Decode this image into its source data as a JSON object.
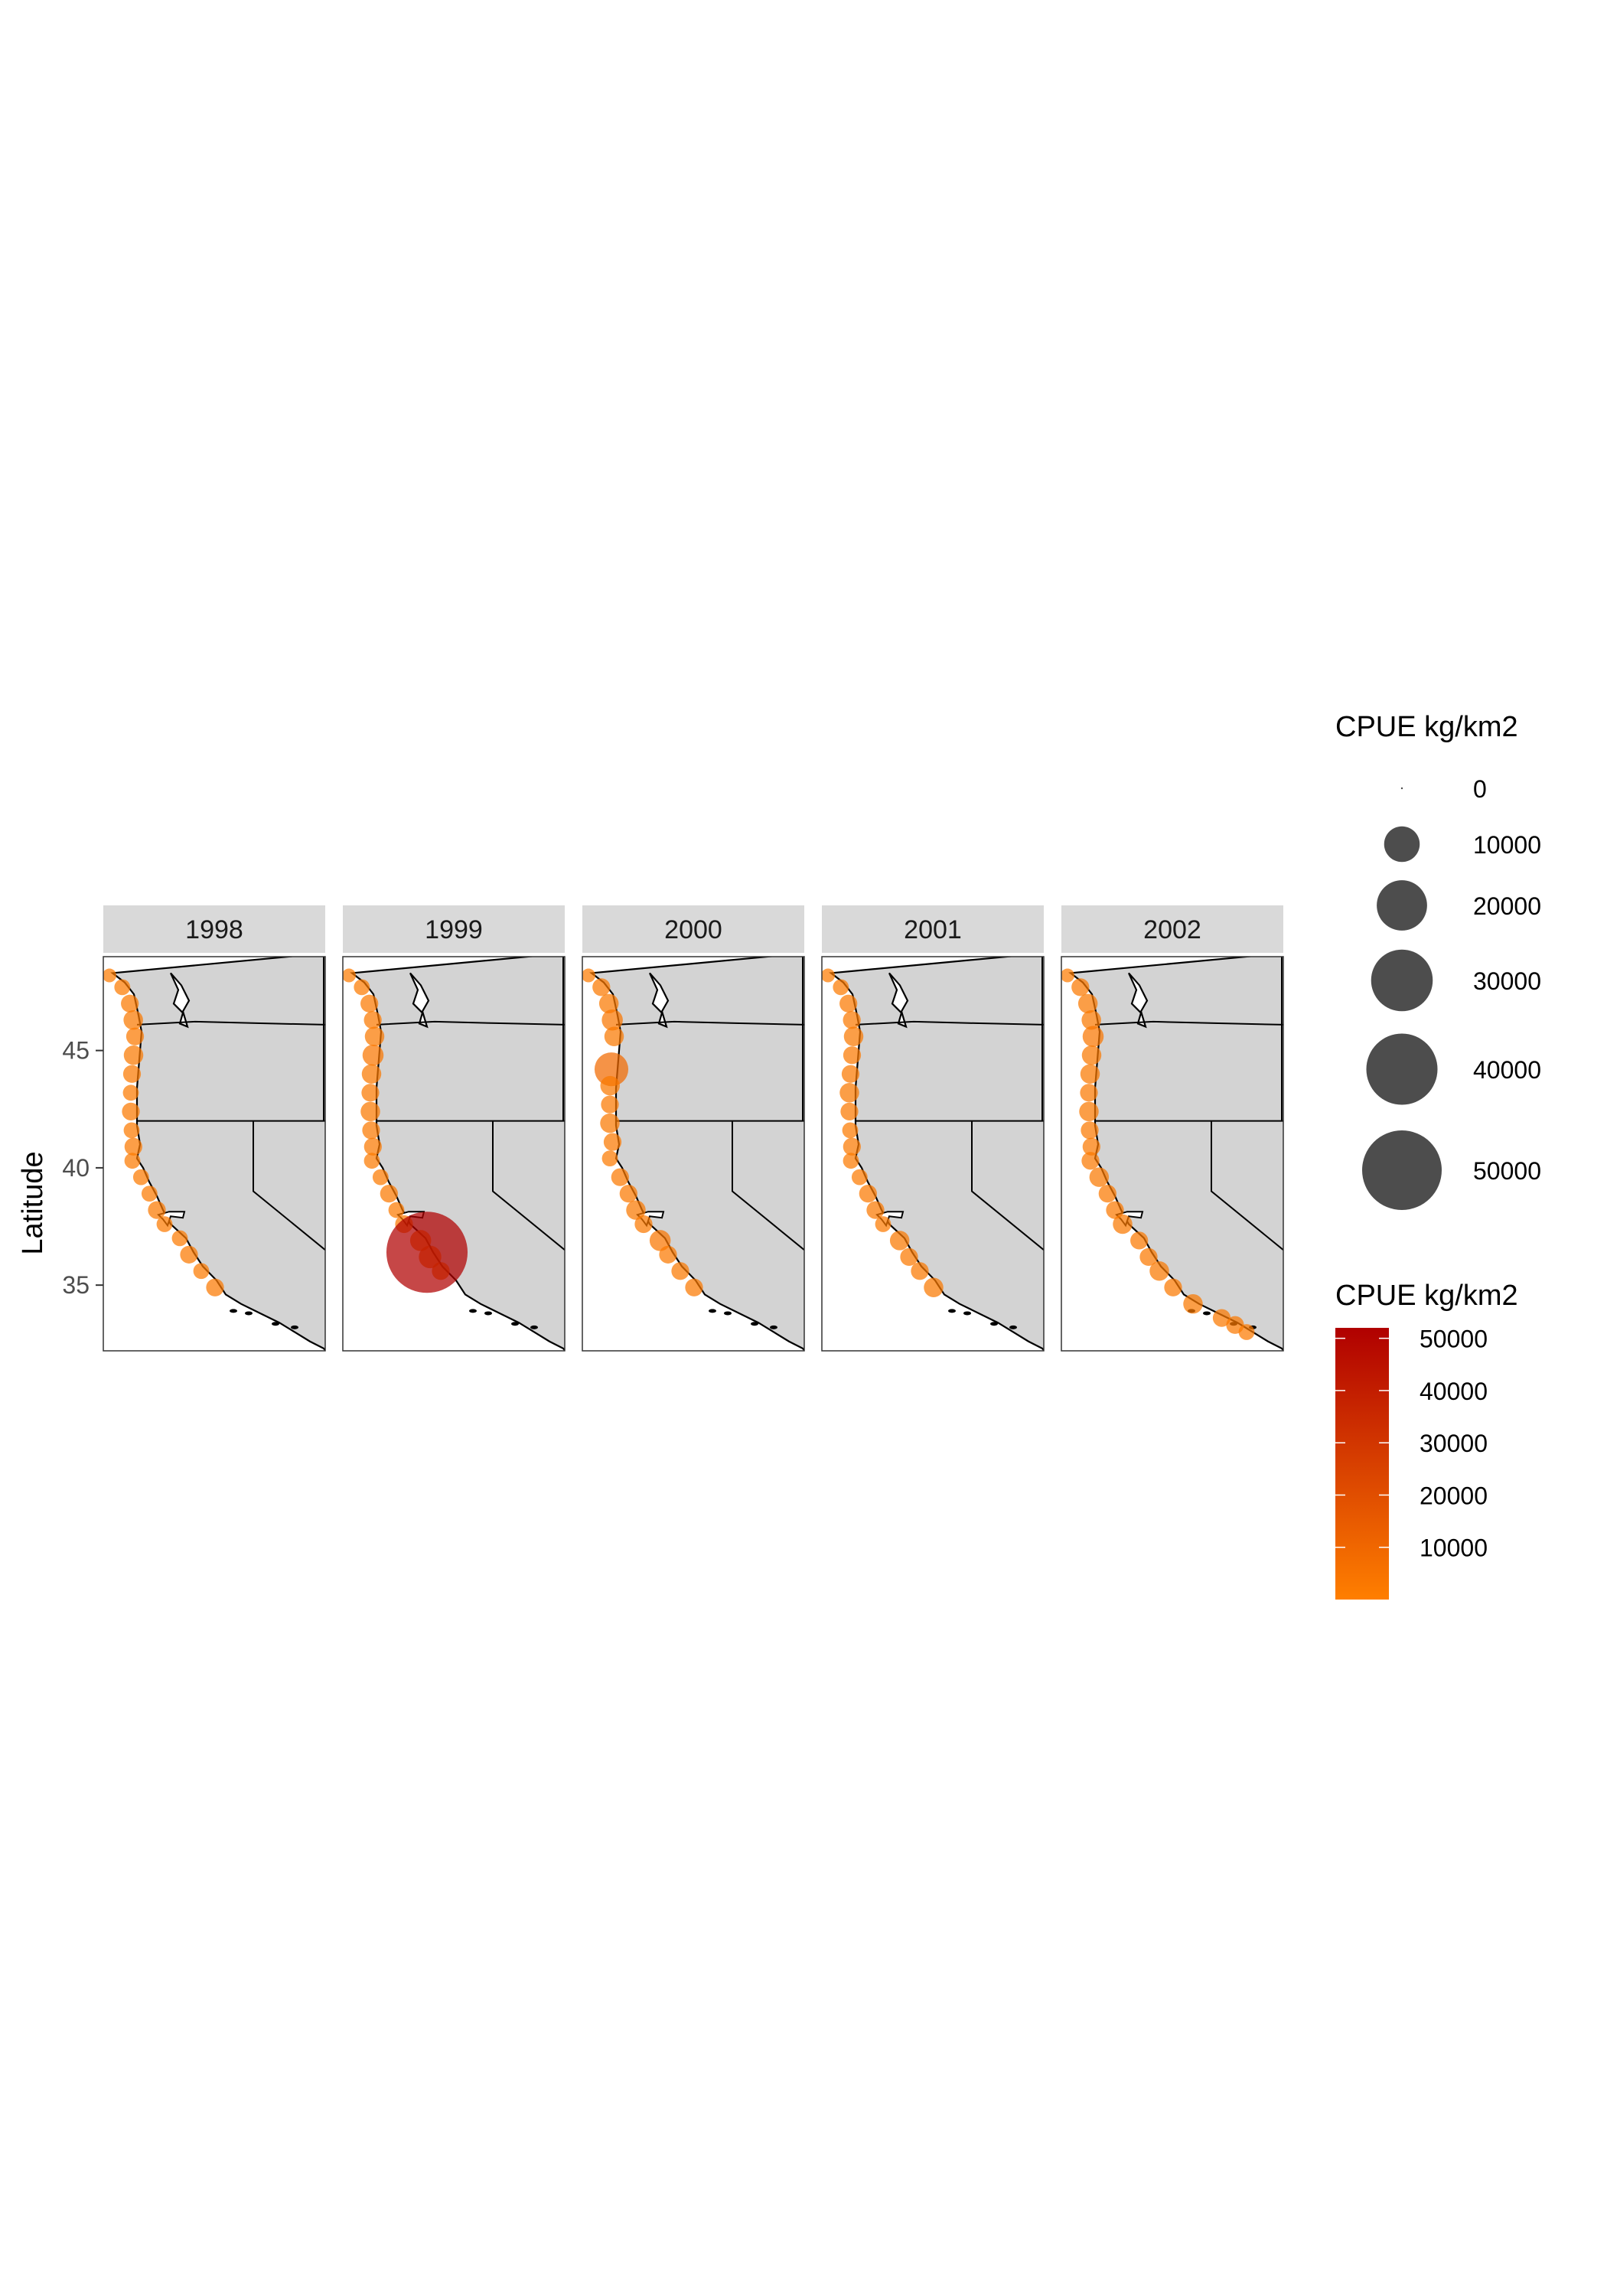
{
  "chart_data": {
    "type": "scatter",
    "subtype": "faceted bubble map",
    "title": "",
    "xlabel": "",
    "ylabel": "Latitude",
    "ylim": [
      32.2,
      49.0
    ],
    "yticks": [
      35,
      40,
      45
    ],
    "grid": false,
    "panels": [
      "1998",
      "1999",
      "2000",
      "2001",
      "2002"
    ],
    "size_legend": {
      "title": "CPUE kg/km2",
      "breaks": [
        "0",
        "10000",
        "20000",
        "30000",
        "40000",
        "50000"
      ],
      "values": [
        0,
        10000,
        20000,
        30000,
        40000,
        50000
      ]
    },
    "color_legend": {
      "title": "CPUE kg/km2",
      "labels": [
        "50000",
        "40000",
        "30000",
        "20000",
        "10000"
      ],
      "values": [
        50000,
        40000,
        30000,
        20000,
        10000
      ],
      "low_color": "#ff7f00",
      "high_color": "#b00000",
      "domain": [
        0,
        52000
      ]
    },
    "series": [
      {
        "panel": "1998",
        "points": [
          [
            48.2,
            1500
          ],
          [
            47.7,
            2000
          ],
          [
            47.0,
            2500
          ],
          [
            46.3,
            3000
          ],
          [
            45.6,
            2500
          ],
          [
            44.8,
            3000
          ],
          [
            44.0,
            2500
          ],
          [
            43.2,
            2000
          ],
          [
            42.4,
            2500
          ],
          [
            41.6,
            2000
          ],
          [
            40.9,
            2500
          ],
          [
            40.3,
            2000
          ],
          [
            39.6,
            2000
          ],
          [
            38.9,
            2000
          ],
          [
            38.2,
            2500
          ],
          [
            37.6,
            2000
          ],
          [
            37.0,
            2000
          ],
          [
            36.3,
            2500
          ],
          [
            35.6,
            2000
          ],
          [
            34.9,
            2500
          ]
        ]
      },
      {
        "panel": "1999",
        "points": [
          [
            48.2,
            1500
          ],
          [
            47.7,
            2000
          ],
          [
            47.0,
            2500
          ],
          [
            46.3,
            2500
          ],
          [
            45.6,
            3000
          ],
          [
            44.8,
            3500
          ],
          [
            44.0,
            3000
          ],
          [
            43.2,
            2500
          ],
          [
            42.4,
            3000
          ],
          [
            41.6,
            2500
          ],
          [
            40.9,
            2500
          ],
          [
            40.3,
            2000
          ],
          [
            39.6,
            2000
          ],
          [
            38.9,
            2500
          ],
          [
            38.2,
            2000
          ],
          [
            37.6,
            2500
          ],
          [
            36.9,
            3500
          ],
          [
            36.2,
            4000
          ],
          [
            35.6,
            2500
          ],
          [
            36.4,
            52000
          ]
        ]
      },
      {
        "panel": "2000",
        "points": [
          [
            48.2,
            1500
          ],
          [
            47.7,
            2500
          ],
          [
            47.0,
            3000
          ],
          [
            46.3,
            3500
          ],
          [
            45.6,
            3000
          ],
          [
            44.2,
            9000
          ],
          [
            43.5,
            3000
          ],
          [
            42.7,
            2500
          ],
          [
            41.9,
            3000
          ],
          [
            41.1,
            2500
          ],
          [
            40.4,
            2000
          ],
          [
            39.6,
            2500
          ],
          [
            38.9,
            2500
          ],
          [
            38.2,
            3000
          ],
          [
            37.6,
            2500
          ],
          [
            36.9,
            3500
          ],
          [
            36.3,
            2500
          ],
          [
            35.6,
            2500
          ],
          [
            34.9,
            2500
          ]
        ]
      },
      {
        "panel": "2001",
        "points": [
          [
            48.2,
            1500
          ],
          [
            47.7,
            2000
          ],
          [
            47.0,
            2500
          ],
          [
            46.3,
            2500
          ],
          [
            45.6,
            3000
          ],
          [
            44.8,
            2500
          ],
          [
            44.0,
            2500
          ],
          [
            43.2,
            3000
          ],
          [
            42.4,
            2500
          ],
          [
            41.6,
            2000
          ],
          [
            40.9,
            2500
          ],
          [
            40.3,
            2000
          ],
          [
            39.6,
            2000
          ],
          [
            38.9,
            2500
          ],
          [
            38.2,
            2500
          ],
          [
            37.6,
            2000
          ],
          [
            36.9,
            3000
          ],
          [
            36.2,
            2500
          ],
          [
            35.6,
            2500
          ],
          [
            34.9,
            3000
          ]
        ]
      },
      {
        "panel": "2002",
        "points": [
          [
            48.2,
            1500
          ],
          [
            47.7,
            2500
          ],
          [
            47.0,
            3000
          ],
          [
            46.3,
            3000
          ],
          [
            45.6,
            3500
          ],
          [
            44.8,
            3000
          ],
          [
            44.0,
            3000
          ],
          [
            43.2,
            2500
          ],
          [
            42.4,
            3000
          ],
          [
            41.6,
            2500
          ],
          [
            40.9,
            2500
          ],
          [
            40.3,
            2500
          ],
          [
            39.6,
            3000
          ],
          [
            38.9,
            2500
          ],
          [
            38.2,
            2500
          ],
          [
            37.6,
            3000
          ],
          [
            36.9,
            2500
          ],
          [
            36.2,
            2500
          ],
          [
            35.6,
            3000
          ],
          [
            34.9,
            2500
          ],
          [
            34.2,
            3000
          ],
          [
            33.6,
            2500
          ],
          [
            33.3,
            2500
          ],
          [
            33.0,
            2000
          ]
        ]
      }
    ]
  }
}
